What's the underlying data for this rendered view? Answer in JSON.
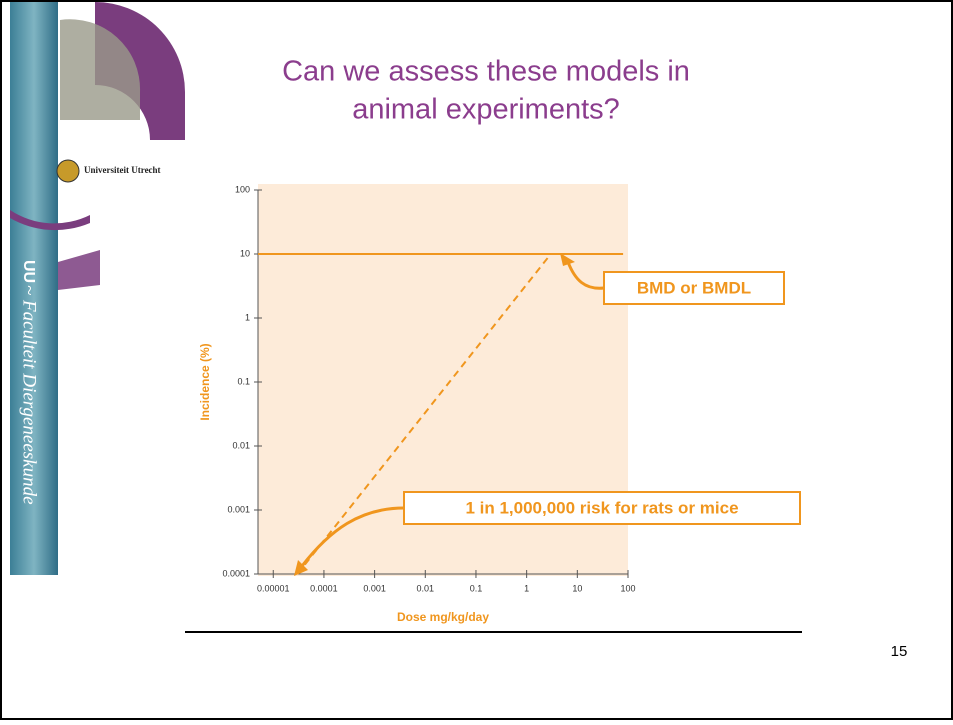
{
  "slide": {
    "title_lines": [
      "Can we assess these models in",
      "animal experiments?"
    ],
    "logo_text": "Universiteit Utrecht",
    "side_short": "UU",
    "side_text": "~ Faculteit Diergeneeskunde",
    "page_number": "15"
  },
  "chart_data": {
    "type": "line",
    "x_label": "Dose mg/kg/day",
    "y_label": "Incidence (%)",
    "log_x": true,
    "log_y": true,
    "xlim": [
      5e-06,
      100
    ],
    "ylim": [
      0.0001,
      100
    ],
    "xticks": [
      1e-05,
      0.0001,
      0.001,
      0.01,
      0.1,
      1,
      10,
      100
    ],
    "yticks": [
      0.0001,
      0.001,
      0.01,
      0.1,
      1,
      10,
      100
    ],
    "series": [
      {
        "color": "#f0961e",
        "dash": false,
        "x": [
          5e-06,
          80
        ],
        "values": [
          10,
          10
        ]
      },
      {
        "color": "#f0961e",
        "dash": true,
        "x": [
          3e-05,
          3
        ],
        "values": [
          0.0001,
          10
        ]
      }
    ],
    "annotations": [
      "BMD or BMDL",
      "1 in 1,000,000 risk for rats or mice"
    ],
    "background": "#fdebd9"
  }
}
